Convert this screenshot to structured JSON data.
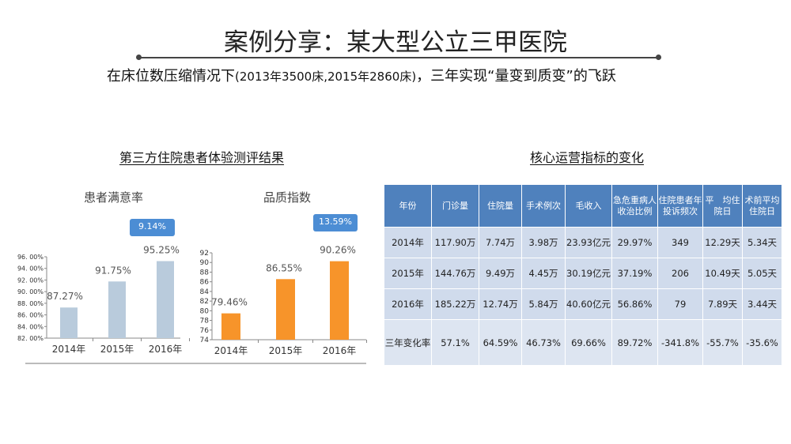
{
  "header": {
    "title": "案例分享：某大型公立三甲医院",
    "subtitle_main": "在床位数压缩情况下",
    "subtitle_paren": "(2013年3500床,2015年2860床)",
    "subtitle_tail": "，三年实现“量变到质变”的飞跃"
  },
  "section_left_title": "第三方住院患者体验测评结果",
  "section_right_title": "核心运营指标的变化",
  "chart_data": [
    {
      "type": "bar",
      "title": "患者满意率",
      "categories": [
        "2014年",
        "2015年",
        "2016年"
      ],
      "values": [
        87.27,
        91.75,
        95.25
      ],
      "value_labels": [
        "87.27%",
        "91.75%",
        "95.25%"
      ],
      "ylim": [
        82,
        96
      ],
      "yticks": [
        "82. 00%",
        "84. 00%",
        "86. 00%",
        "88. 00%",
        "90. 00%",
        "92. 00%",
        "94. 00%",
        "96. 00%"
      ],
      "color": "#b9cbdc",
      "badge": "9.14%",
      "badge_color": "#4c8dd4"
    },
    {
      "type": "bar",
      "title": "品质指数",
      "categories": [
        "2014年",
        "2015年",
        "2016年"
      ],
      "values": [
        79.46,
        86.55,
        90.26
      ],
      "value_labels": [
        "79.46%",
        "86.55%",
        "90.26%"
      ],
      "ylim": [
        74,
        92
      ],
      "yticks": [
        "74",
        "76",
        "78",
        "80",
        "82",
        "84",
        "86",
        "88",
        "90",
        "92"
      ],
      "color": "#f7942a",
      "badge": "13.59%",
      "badge_color": "#4c8dd4"
    },
    {
      "type": "table",
      "title": "核心运营指标的变化",
      "columns": [
        "年份",
        "门诊量",
        "住院量",
        "手术例次",
        "毛收入",
        "急危重病人收治比例",
        "住院患者年投诉频次",
        "平　均住院日",
        "术前平均住院日"
      ],
      "rows": [
        [
          "2014年",
          "117.90万",
          "7.74万",
          "3.98万",
          "23.93亿元",
          "29.97%",
          "349",
          "12.29天",
          "5.34天"
        ],
        [
          "2015年",
          "144.76万",
          "9.49万",
          "4.45万",
          "30.19亿元",
          "37.19%",
          "206",
          "10.49天",
          "5.05天"
        ],
        [
          "2016年",
          "185.22万",
          "12.74万",
          "5.84万",
          "40.60亿元",
          "56.86%",
          "79",
          "7.89天",
          "3.44天"
        ],
        [
          "三年变化率",
          "57.1%",
          "64.59%",
          "46.73%",
          "69.66%",
          "89.72%",
          "-341.8%",
          "-55.7%",
          "-35.6%"
        ]
      ]
    }
  ]
}
